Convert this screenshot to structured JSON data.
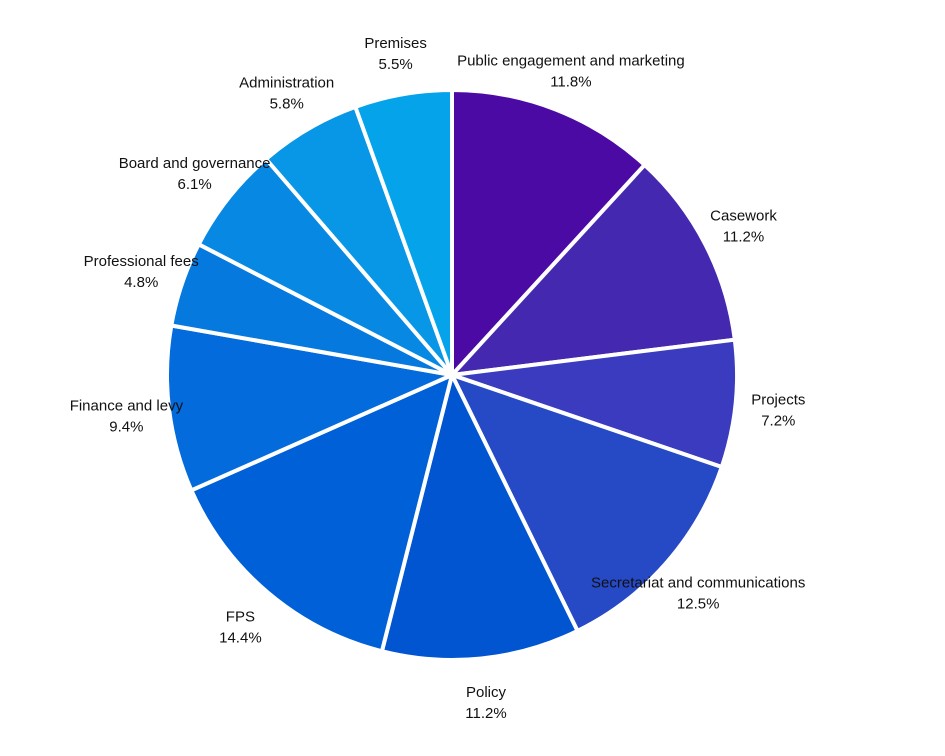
{
  "chart_data": {
    "type": "pie",
    "title": "",
    "slices": [
      {
        "label": "Public engagement and marketing",
        "value": 11.8,
        "value_label": "11.8%",
        "color": "#4c0aa5"
      },
      {
        "label": "Casework",
        "value": 11.2,
        "value_label": "11.2%",
        "color": "#4528b0"
      },
      {
        "label": "Projects",
        "value": 7.2,
        "value_label": "7.2%",
        "color": "#3b3bbf"
      },
      {
        "label": "Secretariat and communications",
        "value": 12.5,
        "value_label": "12.5%",
        "color": "#2649c6"
      },
      {
        "label": "Policy",
        "value": 11.2,
        "value_label": "11.2%",
        "color": "#0255d0"
      },
      {
        "label": "FPS",
        "value": 14.4,
        "value_label": "14.4%",
        "color": "#0060d8"
      },
      {
        "label": "Finance and levy",
        "value": 9.4,
        "value_label": "9.4%",
        "color": "#036bdc"
      },
      {
        "label": "Professional fees",
        "value": 4.8,
        "value_label": "4.8%",
        "color": "#0679df"
      },
      {
        "label": "Board and governance",
        "value": 6.1,
        "value_label": "6.1%",
        "color": "#0789e3"
      },
      {
        "label": "Administration",
        "value": 5.8,
        "value_label": "5.8%",
        "color": "#0896e6"
      },
      {
        "label": "Premises",
        "value": 5.5,
        "value_label": "5.5%",
        "color": "#05a4ea"
      }
    ],
    "start_angle": "12 o'clock",
    "direction": "clockwise",
    "slice_border_color": "#ffffff",
    "legend": "none"
  }
}
